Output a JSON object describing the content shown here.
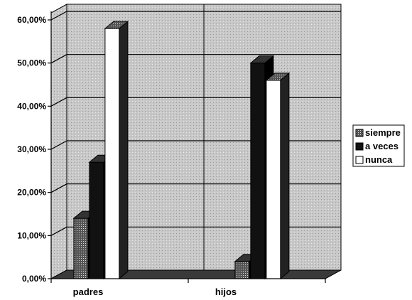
{
  "chart_data": {
    "type": "bar",
    "categories": [
      "padres",
      "hijos"
    ],
    "series": [
      {
        "name": "siempre",
        "values": [
          14,
          4
        ],
        "color": "#666666"
      },
      {
        "name": "a veces",
        "values": [
          27,
          50
        ],
        "color": "#111111"
      },
      {
        "name": "nunca",
        "values": [
          58,
          46
        ],
        "color": "#ffffff"
      }
    ],
    "ylim": [
      0,
      60
    ],
    "yticks": [
      "0,00%",
      "10,00%",
      "20,00%",
      "30,00%",
      "40,00%",
      "50,00%",
      "60,00%"
    ],
    "grid": true,
    "legend_position": "right",
    "colors": {
      "wall": "#c8c8c8",
      "floor": "#3a3a3a",
      "grid": "#000000"
    }
  }
}
